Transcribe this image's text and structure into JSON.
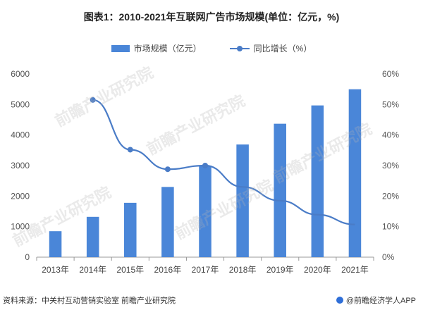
{
  "title": "图表1：2010-2021年互联网广告市场规模(单位：亿元，%)",
  "legend": {
    "bar_label": "市场规模（亿元）",
    "line_label": "同比增长（%）"
  },
  "colors": {
    "bar": "#4a86d8",
    "line": "#4a7cc7"
  },
  "footer": {
    "source": "资料来源：中关村互动营销实验室 前瞻产业研究院",
    "brand": "@前瞻经济学人APP"
  },
  "watermark_text": "前瞻产业研究院",
  "chart_data": {
    "type": "bar",
    "categories": [
      "2013年",
      "2014年",
      "2015年",
      "2016年",
      "2017年",
      "2018年",
      "2019年",
      "2020年",
      "2021年"
    ],
    "series": [
      {
        "name": "市场规模（亿元）",
        "type": "bar",
        "axis": "left",
        "values": [
          850,
          1320,
          1780,
          2300,
          3000,
          3690,
          4370,
          4970,
          5500
        ]
      },
      {
        "name": "同比增长（%）",
        "type": "line",
        "axis": "right",
        "values": [
          null,
          51.5,
          35.2,
          28.8,
          30.0,
          23.0,
          18.5,
          13.9,
          10.7
        ]
      }
    ],
    "y_left": {
      "ticks": [
        "0",
        "1000",
        "2000",
        "3000",
        "4000",
        "5000",
        "6000"
      ],
      "ylim": [
        0,
        6000
      ]
    },
    "y_right": {
      "ticks": [
        "0%",
        "10%",
        "20%",
        "30%",
        "40%",
        "50%",
        "60%"
      ],
      "ylim": [
        0,
        60
      ]
    },
    "grid": false,
    "legend_position": "top-center"
  }
}
